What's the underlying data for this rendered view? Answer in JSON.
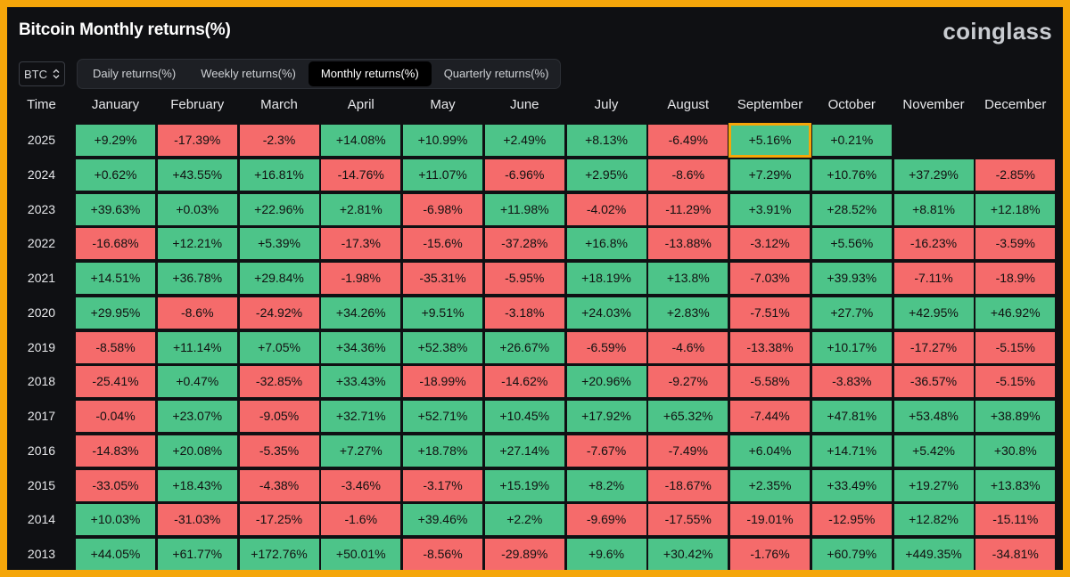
{
  "header": {
    "title": "Bitcoin Monthly returns(%)",
    "logo_text": "coinglass"
  },
  "controls": {
    "asset_selector": "BTC",
    "tabs": [
      "Daily returns(%)",
      "Weekly returns(%)",
      "Monthly returns(%)",
      "Quarterly returns(%)"
    ],
    "active_tab": 2
  },
  "colors": {
    "positive": "#4dc489",
    "negative": "#f56b6b",
    "highlight": "#f5a60a",
    "background": "#0f1013"
  },
  "chart_data": {
    "type": "heatmap",
    "title": "Bitcoin Monthly returns(%)",
    "row_header_label": "Time",
    "columns": [
      "January",
      "February",
      "March",
      "April",
      "May",
      "June",
      "July",
      "August",
      "September",
      "October",
      "November",
      "December"
    ],
    "highlighted": {
      "year": "2025",
      "month": "September"
    },
    "rows": [
      {
        "year": "2025",
        "values": [
          "+9.29%",
          "-17.39%",
          "-2.3%",
          "+14.08%",
          "+10.99%",
          "+2.49%",
          "+8.13%",
          "-6.49%",
          "+5.16%",
          "+0.21%",
          "",
          ""
        ]
      },
      {
        "year": "2024",
        "values": [
          "+0.62%",
          "+43.55%",
          "+16.81%",
          "-14.76%",
          "+11.07%",
          "-6.96%",
          "+2.95%",
          "-8.6%",
          "+7.29%",
          "+10.76%",
          "+37.29%",
          "-2.85%"
        ]
      },
      {
        "year": "2023",
        "values": [
          "+39.63%",
          "+0.03%",
          "+22.96%",
          "+2.81%",
          "-6.98%",
          "+11.98%",
          "-4.02%",
          "-11.29%",
          "+3.91%",
          "+28.52%",
          "+8.81%",
          "+12.18%"
        ]
      },
      {
        "year": "2022",
        "values": [
          "-16.68%",
          "+12.21%",
          "+5.39%",
          "-17.3%",
          "-15.6%",
          "-37.28%",
          "+16.8%",
          "-13.88%",
          "-3.12%",
          "+5.56%",
          "-16.23%",
          "-3.59%"
        ]
      },
      {
        "year": "2021",
        "values": [
          "+14.51%",
          "+36.78%",
          "+29.84%",
          "-1.98%",
          "-35.31%",
          "-5.95%",
          "+18.19%",
          "+13.8%",
          "-7.03%",
          "+39.93%",
          "-7.11%",
          "-18.9%"
        ]
      },
      {
        "year": "2020",
        "values": [
          "+29.95%",
          "-8.6%",
          "-24.92%",
          "+34.26%",
          "+9.51%",
          "-3.18%",
          "+24.03%",
          "+2.83%",
          "-7.51%",
          "+27.7%",
          "+42.95%",
          "+46.92%"
        ]
      },
      {
        "year": "2019",
        "values": [
          "-8.58%",
          "+11.14%",
          "+7.05%",
          "+34.36%",
          "+52.38%",
          "+26.67%",
          "-6.59%",
          "-4.6%",
          "-13.38%",
          "+10.17%",
          "-17.27%",
          "-5.15%"
        ]
      },
      {
        "year": "2018",
        "values": [
          "-25.41%",
          "+0.47%",
          "-32.85%",
          "+33.43%",
          "-18.99%",
          "-14.62%",
          "+20.96%",
          "-9.27%",
          "-5.58%",
          "-3.83%",
          "-36.57%",
          "-5.15%"
        ]
      },
      {
        "year": "2017",
        "values": [
          "-0.04%",
          "+23.07%",
          "-9.05%",
          "+32.71%",
          "+52.71%",
          "+10.45%",
          "+17.92%",
          "+65.32%",
          "-7.44%",
          "+47.81%",
          "+53.48%",
          "+38.89%"
        ]
      },
      {
        "year": "2016",
        "values": [
          "-14.83%",
          "+20.08%",
          "-5.35%",
          "+7.27%",
          "+18.78%",
          "+27.14%",
          "-7.67%",
          "-7.49%",
          "+6.04%",
          "+14.71%",
          "+5.42%",
          "+30.8%"
        ]
      },
      {
        "year": "2015",
        "values": [
          "-33.05%",
          "+18.43%",
          "-4.38%",
          "-3.46%",
          "-3.17%",
          "+15.19%",
          "+8.2%",
          "-18.67%",
          "+2.35%",
          "+33.49%",
          "+19.27%",
          "+13.83%"
        ]
      },
      {
        "year": "2014",
        "values": [
          "+10.03%",
          "-31.03%",
          "-17.25%",
          "-1.6%",
          "+39.46%",
          "+2.2%",
          "-9.69%",
          "-17.55%",
          "-19.01%",
          "-12.95%",
          "+12.82%",
          "-15.11%"
        ]
      },
      {
        "year": "2013",
        "values": [
          "+44.05%",
          "+61.77%",
          "+172.76%",
          "+50.01%",
          "-8.56%",
          "-29.89%",
          "+9.6%",
          "+30.42%",
          "-1.76%",
          "+60.79%",
          "+449.35%",
          "-34.81%"
        ]
      }
    ]
  }
}
